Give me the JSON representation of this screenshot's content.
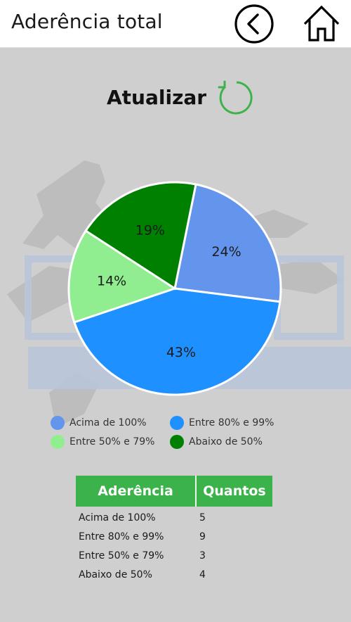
{
  "header": {
    "title": "Aderência total",
    "back_icon": "chevron-left-circle-icon",
    "home_icon": "home-icon"
  },
  "refresh": {
    "label": "Atualizar",
    "icon": "refresh-icon",
    "color": "#3cb34a"
  },
  "chart_data": {
    "type": "pie",
    "categories": [
      "Acima de 100%",
      "Entre 80% e 99%",
      "Entre 50% e 79%",
      "Abaixo de 50%"
    ],
    "values": [
      5,
      9,
      3,
      4
    ],
    "percent_labels": [
      "24%",
      "43%",
      "14%",
      "19%"
    ],
    "colors": [
      "#6495ed",
      "#1e90ff",
      "#90ee90",
      "#008000"
    ],
    "title": "",
    "legend_position": "bottom"
  },
  "table": {
    "headers": [
      "Aderência",
      "Quantos"
    ],
    "rows": [
      [
        "Acima de 100%",
        "5"
      ],
      [
        "Entre 80% e 99%",
        "9"
      ],
      [
        "Entre 50% e 79%",
        "3"
      ],
      [
        "Abaixo de 50%",
        "4"
      ]
    ],
    "header_color": "#3cb34a"
  }
}
